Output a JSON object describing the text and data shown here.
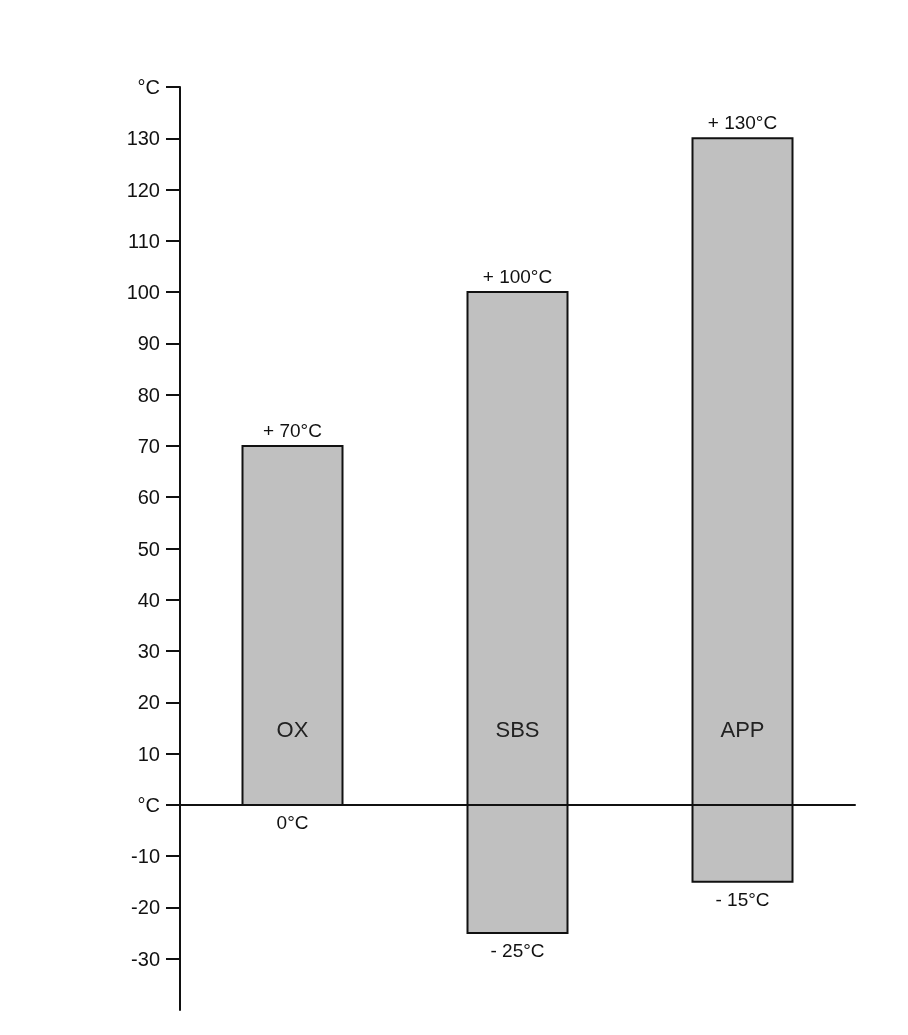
{
  "chart_data": {
    "type": "bar",
    "categories": [
      "OX",
      "SBS",
      "APP"
    ],
    "base": [
      0,
      -25,
      -15
    ],
    "values": [
      70,
      125,
      145
    ],
    "color": "#c0c0c0",
    "ylim": [
      -40,
      140
    ],
    "yticks": [
      -30,
      -20,
      -10,
      {
        "value": 0,
        "label": "°C"
      },
      10,
      20,
      30,
      40,
      50,
      60,
      70,
      80,
      90,
      100,
      110,
      120,
      130,
      {
        "value": 140,
        "label": "°C"
      }
    ],
    "annotations": [
      {
        "text": "+ 70°C",
        "x": "OX",
        "y": 70
      },
      {
        "text": "0°C",
        "x": "OX",
        "y": 0
      },
      {
        "text": "+ 100°C",
        "x": "SBS",
        "y": 100
      },
      {
        "text": "- 25°C",
        "x": "SBS",
        "y": -25
      },
      {
        "text": "+ 130°C",
        "x": "APP",
        "y": 130
      },
      {
        "text": "- 15°C",
        "x": "APP",
        "y": -15
      }
    ],
    "orientation": "vertical"
  }
}
